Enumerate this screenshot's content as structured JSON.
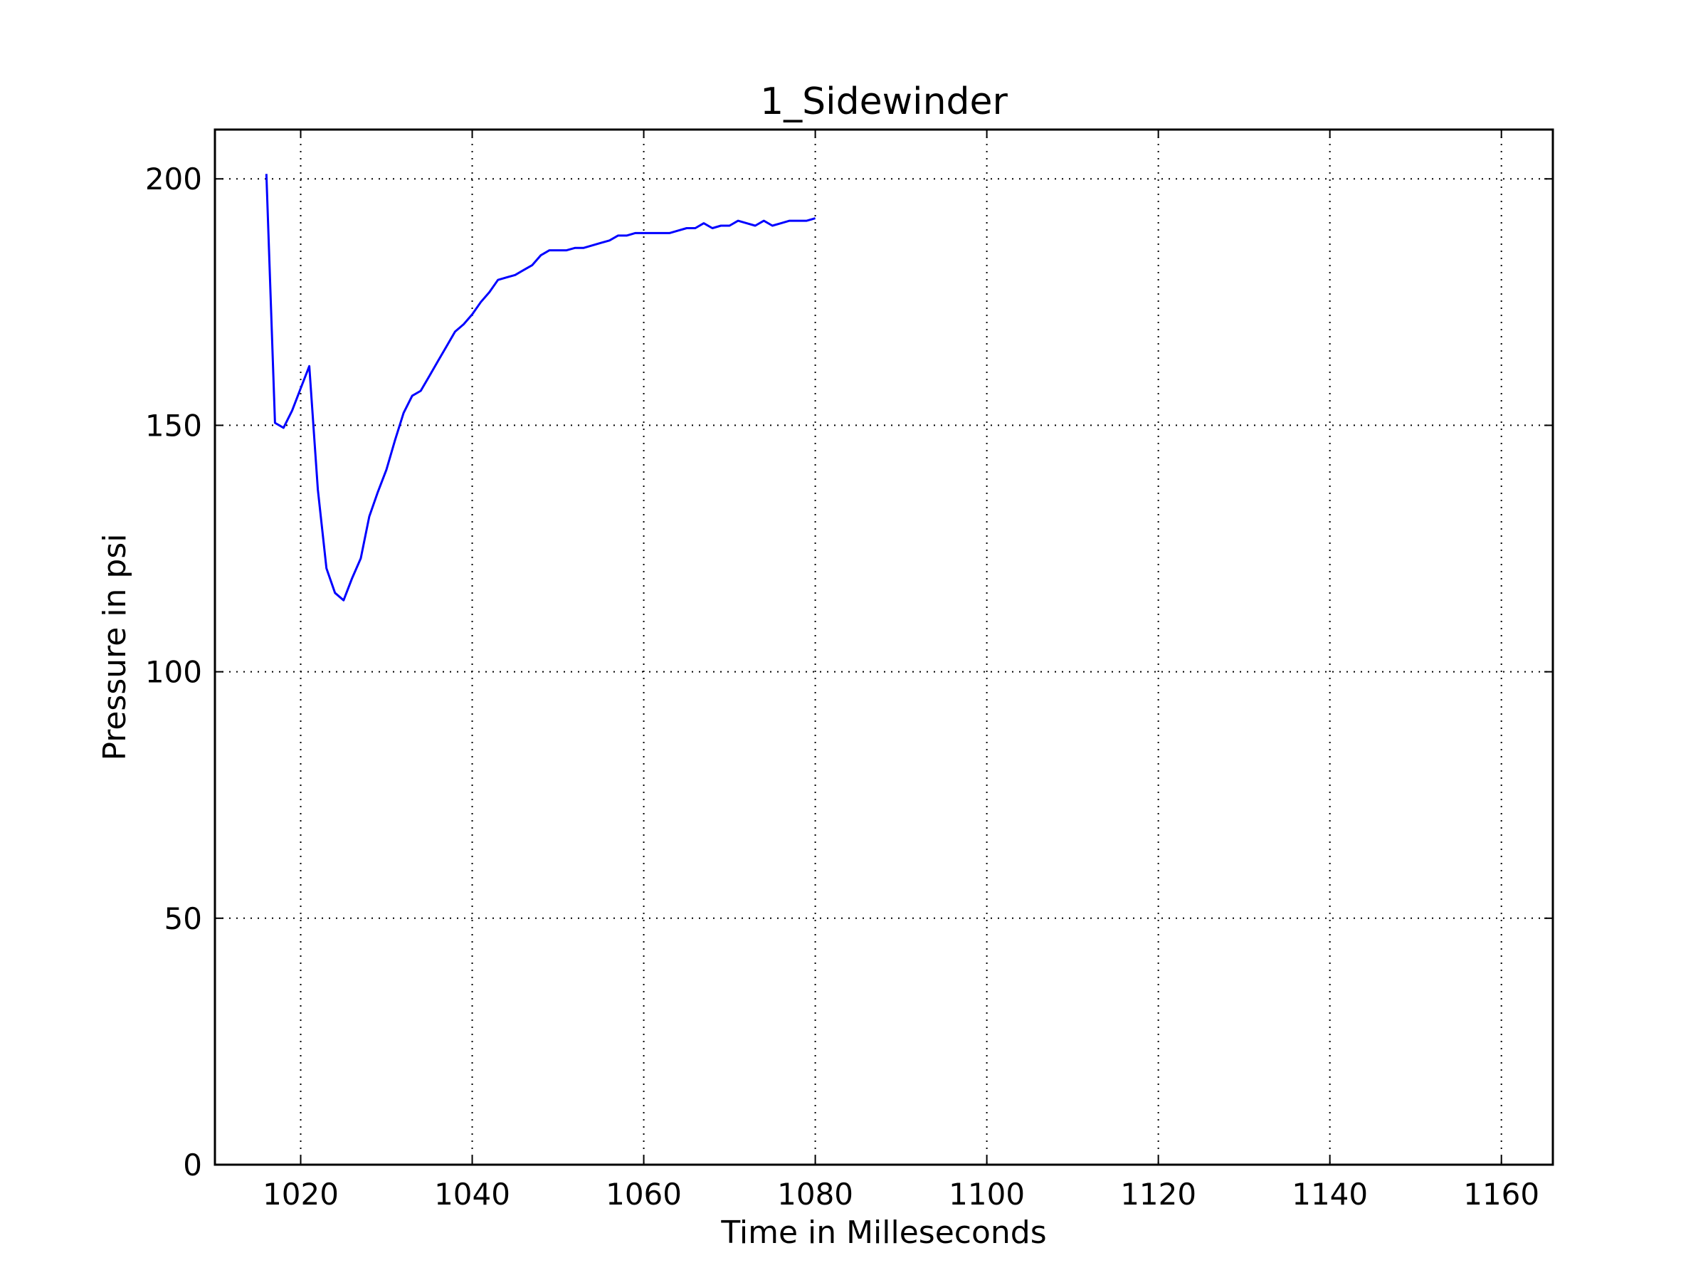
{
  "chart_data": {
    "type": "line",
    "title": "1_Sidewinder",
    "xlabel": "Time in Milleseconds",
    "ylabel": "Pressure in psi",
    "xlim": [
      1010,
      1166
    ],
    "ylim": [
      0,
      210
    ],
    "xticks": [
      1020,
      1040,
      1060,
      1080,
      1100,
      1120,
      1140,
      1160
    ],
    "yticks": [
      0,
      50,
      100,
      150,
      200
    ],
    "grid": true,
    "series": [
      {
        "color": "#0000ff",
        "x": [
          1016,
          1017,
          1018,
          1019,
          1020,
          1021,
          1022,
          1023,
          1024,
          1025,
          1026,
          1027,
          1028,
          1029,
          1030,
          1031,
          1032,
          1033,
          1034,
          1035,
          1036,
          1037,
          1038,
          1039,
          1040,
          1041,
          1042,
          1043,
          1044,
          1045,
          1046,
          1047,
          1048,
          1049,
          1050,
          1051,
          1052,
          1053,
          1054,
          1055,
          1056,
          1057,
          1058,
          1059,
          1060,
          1061,
          1062,
          1063,
          1064,
          1065,
          1066,
          1067,
          1068,
          1069,
          1070,
          1071,
          1072,
          1073,
          1074,
          1075,
          1076,
          1077,
          1078,
          1079,
          1080
        ],
        "y": [
          201,
          150.5,
          149.5,
          153,
          157.5,
          162,
          137,
          121,
          116,
          114.5,
          119,
          123,
          131.5,
          136.5,
          141,
          147,
          152.5,
          156,
          157,
          160,
          163,
          166,
          169,
          170.5,
          172.5,
          175,
          177,
          179.5,
          180,
          180.5,
          181.5,
          182.5,
          184.5,
          185.5,
          185.5,
          185.5,
          186,
          186,
          186.5,
          187,
          187.5,
          188.5,
          188.5,
          189,
          189,
          189,
          189,
          189,
          189.5,
          190,
          190,
          191,
          190,
          190.5,
          190.5,
          191.5,
          191,
          190.5,
          191.5,
          190.5,
          191,
          191.5,
          191.5,
          191.5,
          192
        ]
      }
    ]
  }
}
